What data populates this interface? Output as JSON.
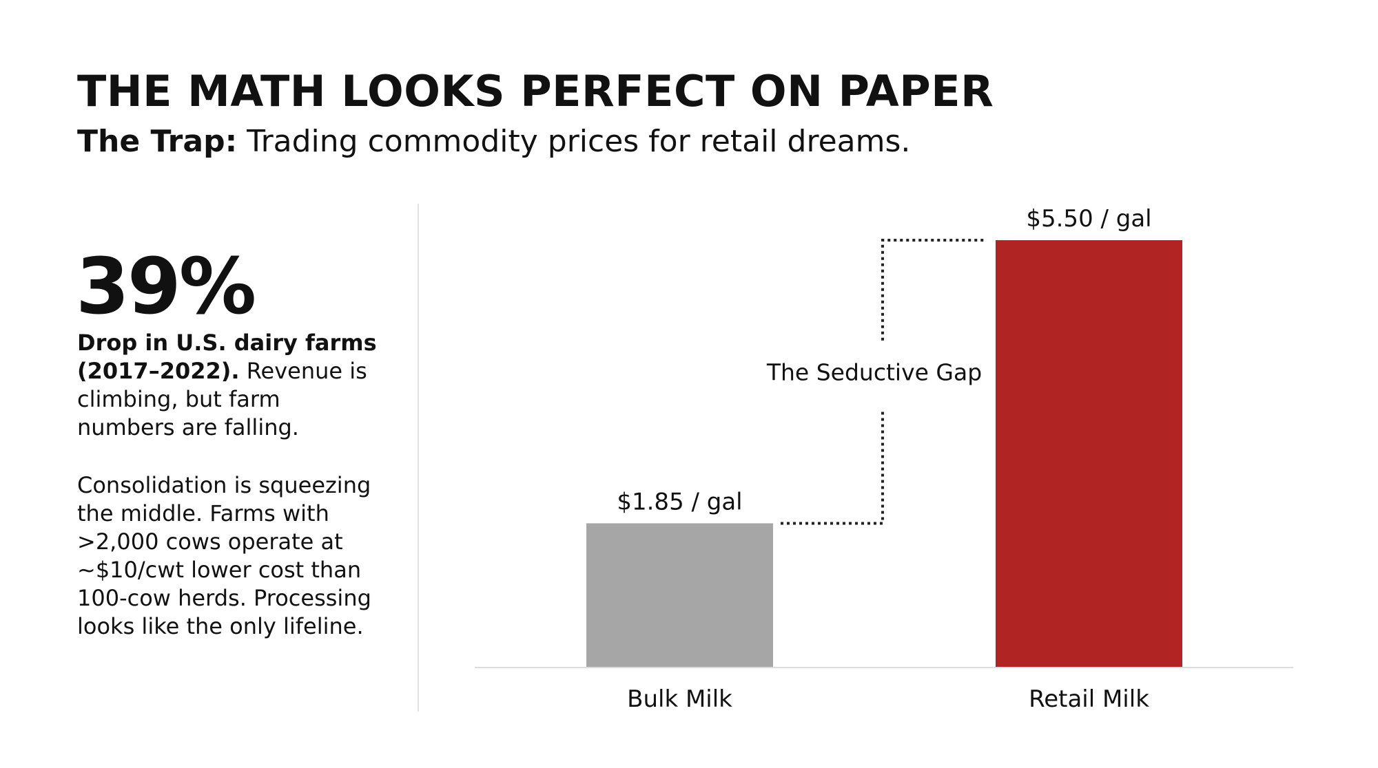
{
  "header": {
    "title": "THE MATH LOOKS PERFECT ON PAPER",
    "subtitle_lead": "The Trap:",
    "subtitle_rest": " Trading commodity prices for retail dreams."
  },
  "left_panel": {
    "stat": "39%",
    "stat_caption_bold": "Drop in U.S. dairy farms (2017–2022).",
    "stat_caption_rest": " Revenue is climbing, but farm numbers are falling.",
    "body": "Consolidation is squeezing the middle. Farms with >2,000 cows operate at ~$10/cwt lower cost than 100-cow herds. Processing looks like the only lifeline."
  },
  "chart_data": {
    "type": "bar",
    "categories": [
      "Bulk Milk",
      "Retail Milk"
    ],
    "values": [
      1.85,
      5.5
    ],
    "value_labels": [
      "$1.85 / gal",
      "$5.50 / gal"
    ],
    "colors": [
      "#a6a6a6",
      "#b12424"
    ],
    "annotation": "The Seductive Gap",
    "ylim": [
      0,
      5.5
    ],
    "grid": false,
    "title": "",
    "xlabel": "",
    "ylabel": ""
  }
}
